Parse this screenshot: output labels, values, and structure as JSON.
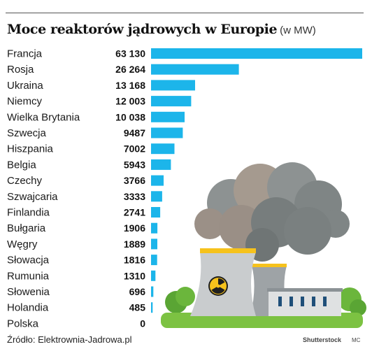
{
  "title": "Moce reaktorów jądrowych w Europie",
  "unit": "(w MW)",
  "source": "Źródło: Elektrownia-Jadrowa.pl",
  "credit": "Shutterstock",
  "credit_author": "MC",
  "colors": {
    "bar": "#1cb5ea",
    "ground": "#7cc242",
    "tower": "#c9ccce",
    "smoke": "#8a8f8f"
  },
  "illustration": {
    "icon": "radiation-icon"
  },
  "chart_data": {
    "type": "bar",
    "orientation": "horizontal",
    "title": "Moce reaktorów jądrowych w Europie",
    "unit": "(w MW)",
    "categories": [
      "Francja",
      "Rosja",
      "Ukraina",
      "Niemcy",
      "Wielka Brytania",
      "Szwecja",
      "Hiszpania",
      "Belgia",
      "Czechy",
      "Szwajcaria",
      "Finlandia",
      "Bułgaria",
      "Węgry",
      "Słowacja",
      "Rumunia",
      "Słowenia",
      "Holandia",
      "Polska"
    ],
    "values": [
      63130,
      26264,
      13168,
      12003,
      10038,
      9487,
      7002,
      5943,
      3766,
      3333,
      2741,
      1906,
      1889,
      1816,
      1310,
      696,
      485,
      0
    ],
    "value_labels": [
      "63 130",
      "26 264",
      "13 168",
      "12 003",
      "10 038",
      "9487",
      "7002",
      "5943",
      "3766",
      "3333",
      "2741",
      "1906",
      "1889",
      "1816",
      "1310",
      "696",
      "485",
      "0"
    ],
    "xlim": [
      0,
      63130
    ],
    "grid": false
  }
}
